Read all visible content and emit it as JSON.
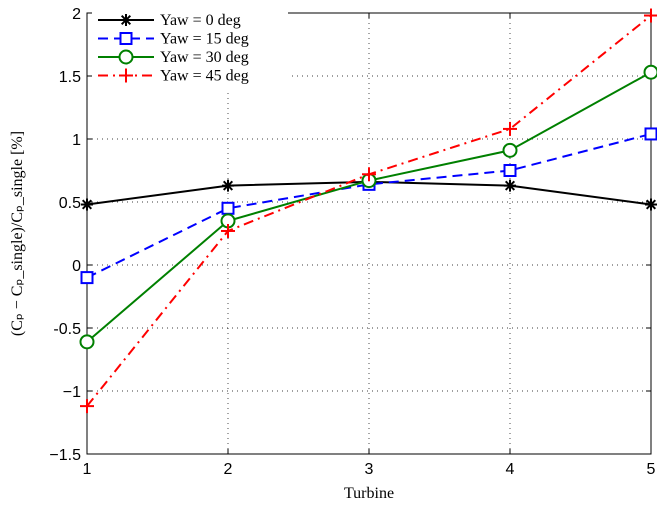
{
  "chart_data": {
    "type": "line",
    "x": [
      1,
      2,
      3,
      4,
      5
    ],
    "xlim": [
      1,
      5
    ],
    "ylim": [
      -1.5,
      2
    ],
    "xticks": [
      "1",
      "2",
      "3",
      "4",
      "5"
    ],
    "yticks": [
      "−1.5",
      "−1",
      "-0.5",
      "0",
      "0.5",
      "1",
      "1.5",
      "2"
    ],
    "xlabel": "Turbine",
    "ylabel": "(Cₚ − Cₚ_single)/Cₚ_single [%]",
    "grid": true,
    "legend_position": "top-left",
    "series": [
      {
        "name": "Yaw = 0 deg",
        "values": [
          0.48,
          0.63,
          0.66,
          0.63,
          0.48
        ],
        "color": "#000000",
        "marker": "asterisk",
        "linestyle": "solid"
      },
      {
        "name": "Yaw = 15 deg",
        "values": [
          -0.1,
          0.45,
          0.64,
          0.75,
          1.04
        ],
        "color": "#0000ff",
        "marker": "square",
        "linestyle": "dashed"
      },
      {
        "name": "Yaw = 30 deg",
        "values": [
          -0.61,
          0.35,
          0.67,
          0.91,
          1.53
        ],
        "color": "#008000",
        "marker": "circle",
        "linestyle": "solid"
      },
      {
        "name": "Yaw = 45 deg",
        "values": [
          -1.12,
          0.27,
          0.72,
          1.08,
          1.98
        ],
        "color": "#ff0000",
        "marker": "plus",
        "linestyle": "dashdot"
      }
    ]
  }
}
